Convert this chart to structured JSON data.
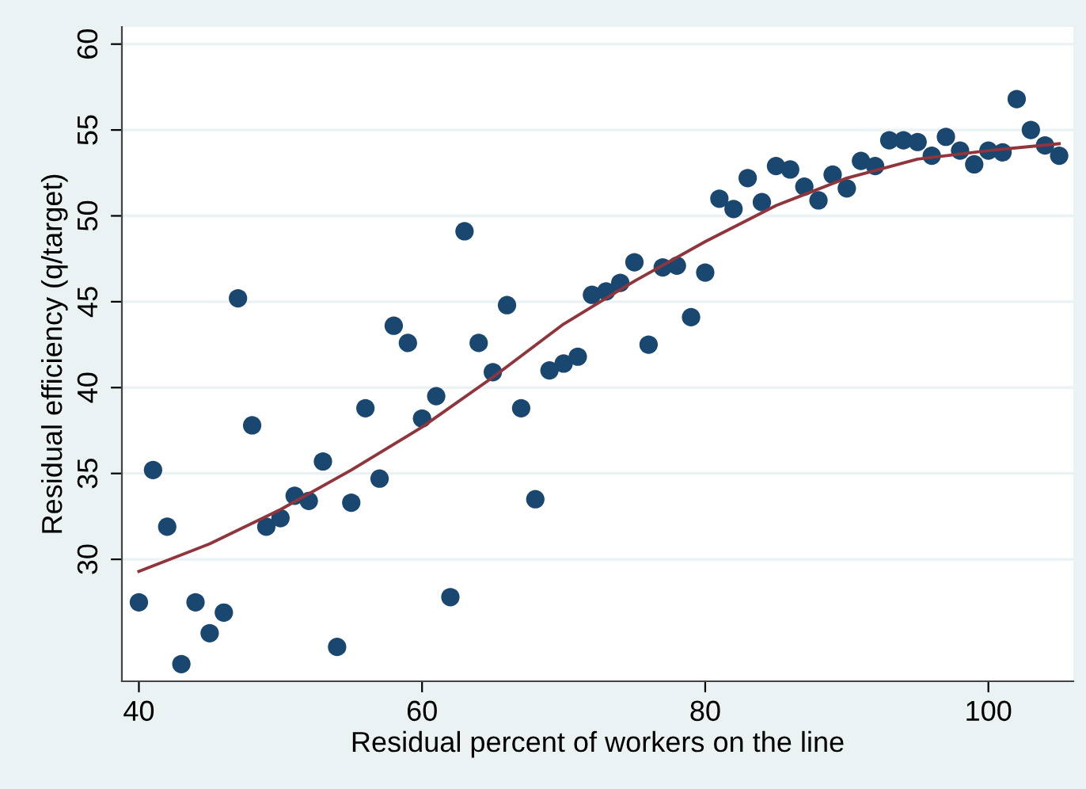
{
  "chart_data": {
    "type": "scatter",
    "xlabel": "Residual percent of workers on the line",
    "ylabel": "Residual efficiency (q/target)",
    "xlim": [
      38.8,
      106
    ],
    "ylim": [
      22.9,
      61
    ],
    "xticks": [
      40,
      60,
      80,
      100
    ],
    "yticks": [
      30,
      35,
      40,
      45,
      50,
      55,
      60
    ],
    "grid": "y",
    "series": [
      {
        "color": "#1a476f",
        "marker": "circle",
        "x": [
          40,
          41,
          42,
          43,
          44,
          45,
          46,
          47,
          48,
          49,
          50,
          51,
          52,
          53,
          54,
          55,
          56,
          57,
          58,
          59,
          60,
          61,
          62,
          63,
          64,
          65,
          66,
          67,
          68,
          69,
          70,
          71,
          72,
          73,
          74,
          75,
          76,
          77,
          78,
          79,
          80,
          81,
          82,
          83,
          84,
          85,
          86,
          87,
          88,
          89,
          90,
          91,
          92,
          93,
          94,
          95,
          96,
          97,
          98,
          99,
          100,
          101,
          102,
          103,
          104,
          105
        ],
        "values": [
          27.5,
          35.2,
          31.9,
          23.9,
          27.5,
          25.7,
          26.9,
          45.2,
          37.8,
          31.9,
          32.4,
          33.7,
          33.4,
          35.7,
          24.9,
          33.3,
          38.8,
          34.7,
          43.6,
          42.6,
          38.2,
          39.5,
          27.8,
          49.1,
          42.6,
          40.9,
          44.8,
          38.8,
          33.5,
          41.0,
          41.4,
          41.8,
          45.4,
          45.6,
          46.1,
          47.3,
          42.5,
          47.0,
          47.1,
          44.1,
          46.7,
          51.0,
          50.4,
          52.2,
          50.8,
          52.9,
          52.7,
          51.7,
          50.9,
          52.4,
          51.6,
          53.2,
          52.9,
          54.4,
          54.4,
          54.3,
          53.5,
          54.6,
          53.8,
          53.0,
          53.8,
          53.7,
          56.8,
          55.0,
          54.1,
          53.5
        ]
      },
      {
        "type": "line",
        "color": "#90353b",
        "marker": "none",
        "line_style": "solid",
        "x": [
          40,
          45,
          50,
          55,
          60,
          65,
          70,
          75,
          80,
          85,
          90,
          95,
          100,
          105
        ],
        "values": [
          29.3,
          30.9,
          32.9,
          35.2,
          37.7,
          40.6,
          43.7,
          46.2,
          48.5,
          50.6,
          52.2,
          53.3,
          53.8,
          54.2
        ]
      }
    ]
  }
}
